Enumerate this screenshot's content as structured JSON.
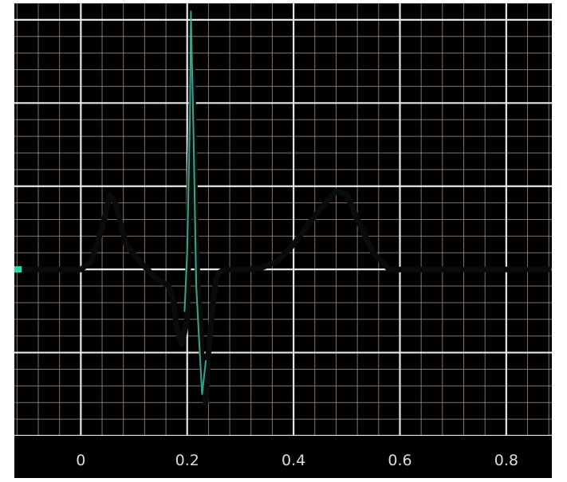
{
  "chart_data": {
    "type": "line",
    "title": "",
    "xlabel": "",
    "ylabel": "",
    "xlim": [
      -0.125,
      0.8857
    ],
    "ylim": [
      -1.0,
      1.6
    ],
    "x_ticks": [
      {
        "value": 0,
        "label": "0"
      },
      {
        "value": 0.2,
        "label": "0.2"
      },
      {
        "value": 0.4,
        "label": "0.4"
      },
      {
        "value": 0.6,
        "label": "0.6"
      },
      {
        "value": 0.8,
        "label": "0.8"
      }
    ],
    "grid": {
      "major": true,
      "minor": true,
      "minor_per_major": 5
    },
    "marker": {
      "x": -0.12,
      "y": 0
    },
    "series": [
      {
        "style": "dark-trace",
        "x": [
          -0.12,
          0.0,
          0.02,
          0.04,
          0.055,
          0.065,
          0.085,
          0.11,
          0.14,
          0.165,
          0.175,
          0.18,
          0.19,
          0.2,
          0.205,
          0.21,
          0.215,
          0.22,
          0.225,
          0.23,
          0.235,
          0.24,
          0.25,
          0.255,
          0.26,
          0.27,
          0.29,
          0.31,
          0.34,
          0.37,
          0.4,
          0.43,
          0.46,
          0.48,
          0.5,
          0.52,
          0.55,
          0.58,
          0.62,
          0.7,
          0.88
        ],
        "y": [
          0.0,
          0.0,
          0.05,
          0.25,
          0.45,
          0.4,
          0.15,
          0.05,
          -0.05,
          -0.1,
          -0.2,
          -0.35,
          -0.45,
          -0.3,
          0.6,
          1.2,
          0.4,
          -0.1,
          -0.35,
          -0.7,
          -0.8,
          -0.5,
          -0.15,
          -0.05,
          -0.02,
          0.0,
          0.0,
          0.0,
          0.01,
          0.05,
          0.15,
          0.28,
          0.4,
          0.47,
          0.45,
          0.3,
          0.1,
          0.0,
          0.0,
          0.0,
          0.0
        ]
      },
      {
        "style": "cyan-overlay",
        "x": [
          0.195,
          0.2,
          0.205,
          0.207,
          0.212,
          0.217,
          0.222,
          0.228,
          0.235
        ],
        "y": [
          -0.25,
          0.1,
          0.9,
          1.55,
          0.8,
          -0.1,
          -0.4,
          -0.75,
          -0.55
        ]
      }
    ]
  }
}
